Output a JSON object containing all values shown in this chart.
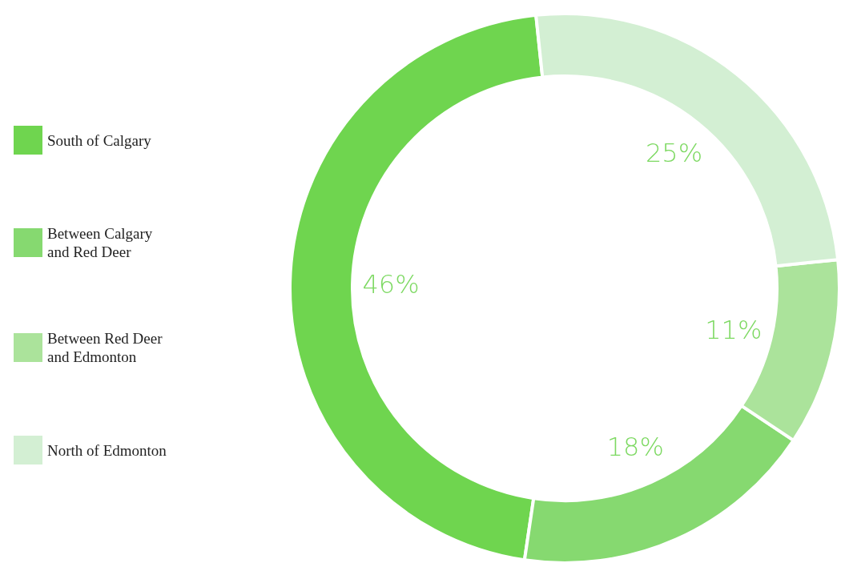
{
  "chart_data": {
    "type": "donut",
    "categories": [
      "South of Calgary",
      "Between Calgary and Red Deer",
      "Between Red Deer and Edmonton",
      "North of Edmonton"
    ],
    "values": [
      46,
      18,
      11,
      25
    ],
    "colors": [
      "#6fd54f",
      "#86d970",
      "#abe39b",
      "#d3efd3"
    ],
    "value_labels": [
      "46%",
      "18%",
      "11%",
      "25%"
    ],
    "legend": "left"
  }
}
